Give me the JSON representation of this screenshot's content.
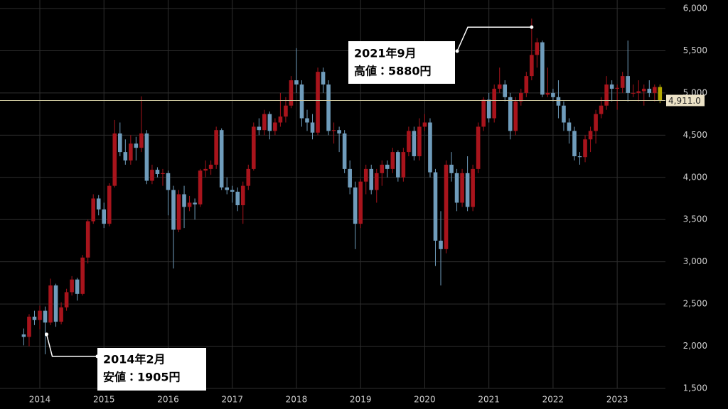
{
  "chart_data": {
    "type": "candlestick",
    "categories": [
      null,
      null,
      null,
      "2014",
      null,
      null,
      null,
      null,
      null,
      null,
      null,
      null,
      null,
      null,
      null,
      "2015",
      null,
      null,
      null,
      null,
      null,
      null,
      null,
      null,
      null,
      null,
      null,
      "2016",
      null,
      null,
      null,
      null,
      null,
      null,
      null,
      null,
      null,
      null,
      null,
      "2017",
      null,
      null,
      null,
      null,
      null,
      null,
      null,
      null,
      null,
      null,
      null,
      "2018",
      null,
      null,
      null,
      null,
      null,
      null,
      null,
      null,
      null,
      null,
      null,
      "2019",
      null,
      null,
      null,
      null,
      null,
      null,
      null,
      null,
      null,
      null,
      null,
      "2020",
      null,
      null,
      null,
      null,
      null,
      null,
      null,
      null,
      null,
      null,
      null,
      "2021",
      null,
      null,
      null,
      null,
      null,
      null,
      null,
      null,
      null,
      null,
      null,
      "2022",
      null,
      null,
      null,
      null,
      null,
      null,
      null,
      null,
      null,
      null,
      null,
      "2023",
      null,
      null,
      null,
      null,
      null,
      null,
      null,
      null
    ],
    "open": [
      2140,
      2110,
      2350,
      2310,
      2420,
      2280,
      2720,
      2290,
      2460,
      2640,
      2790,
      2620,
      3050,
      3480,
      3750,
      3620,
      3450,
      3900,
      4520,
      4300,
      4200,
      4400,
      4350,
      4520,
      3960,
      4090,
      4040,
      4050,
      3850,
      3380,
      3800,
      3650,
      3700,
      3680,
      4080,
      4100,
      4150,
      4560,
      3880,
      3850,
      3830,
      3670,
      3900,
      4100,
      4600,
      4560,
      4750,
      4550,
      4650,
      4720,
      4850,
      5150,
      5100,
      4700,
      4650,
      4530,
      5250,
      5100,
      4550,
      4560,
      4520,
      4100,
      3880,
      3450,
      3950,
      4100,
      3850,
      4050,
      4150,
      4100,
      4300,
      4000,
      4300,
      4550,
      4250,
      4600,
      4650,
      4060,
      3250,
      3150,
      4150,
      4050,
      3700,
      4050,
      3650,
      4100,
      4600,
      4920,
      4700,
      5050,
      5100,
      4950,
      4550,
      4900,
      5000,
      5200,
      5450,
      5600,
      4980,
      5000,
      4950,
      4850,
      4650,
      4550,
      4250,
      4240,
      4450,
      4550,
      4750,
      4850,
      5100,
      5050,
      5060,
      5200,
      5000,
      5000,
      5020,
      5050,
      5000,
      5070
    ],
    "high": [
      2210,
      2380,
      2420,
      2480,
      2470,
      2800,
      2740,
      2520,
      2680,
      2830,
      2810,
      3080,
      3500,
      3800,
      3790,
      3700,
      3930,
      4680,
      4650,
      4450,
      4500,
      4480,
      4960,
      4560,
      4150,
      4120,
      4100,
      4080,
      3900,
      3850,
      3900,
      3780,
      3750,
      4100,
      4200,
      4200,
      4600,
      4580,
      4000,
      3900,
      3880,
      3950,
      4150,
      4650,
      4700,
      4800,
      4780,
      4700,
      5000,
      4950,
      5200,
      5530,
      5150,
      4800,
      4750,
      5300,
      5300,
      5150,
      4650,
      4600,
      4560,
      4200,
      3950,
      3980,
      4150,
      4150,
      4100,
      4200,
      4200,
      4350,
      4320,
      4350,
      4600,
      4600,
      4700,
      4750,
      4700,
      4100,
      3600,
      4200,
      4300,
      4100,
      4100,
      4250,
      4150,
      4650,
      4950,
      5000,
      5100,
      5300,
      5150,
      5000,
      4950,
      5050,
      5250,
      5880,
      5650,
      5620,
      5300,
      5050,
      5150,
      4900,
      4700,
      4600,
      4300,
      4500,
      4600,
      4800,
      4950,
      5200,
      5150,
      5100,
      5250,
      5620,
      5100,
      5150,
      5100,
      5150,
      5100,
      5100
    ],
    "low": [
      2010,
      2000,
      2250,
      2200,
      1905,
      2250,
      2230,
      2260,
      2420,
      2600,
      2540,
      2600,
      2980,
      3450,
      3550,
      3400,
      3420,
      3880,
      4250,
      4150,
      4150,
      4200,
      4300,
      3920,
      3920,
      4000,
      3900,
      3550,
      2920,
      3350,
      3400,
      3600,
      3500,
      3650,
      4000,
      4030,
      4100,
      3850,
      3800,
      3700,
      3600,
      3450,
      3850,
      4080,
      4500,
      4500,
      4450,
      4500,
      4600,
      4650,
      4820,
      5000,
      4600,
      4550,
      4450,
      4500,
      5000,
      4500,
      4400,
      4300,
      4050,
      3800,
      3150,
      3400,
      3800,
      3800,
      3700,
      3900,
      4000,
      4050,
      3950,
      3950,
      4250,
      4200,
      4200,
      4550,
      4000,
      2950,
      2720,
      3100,
      3950,
      3600,
      3650,
      3600,
      3600,
      4050,
      4550,
      4650,
      4650,
      5000,
      4900,
      4450,
      4500,
      4850,
      4950,
      5150,
      5300,
      4950,
      4950,
      4900,
      4700,
      4550,
      4400,
      4200,
      4150,
      4180,
      4300,
      4400,
      4700,
      4800,
      4900,
      4800,
      5000,
      4900,
      4950,
      4900,
      4850,
      4950,
      4900,
      4880
    ],
    "close": [
      2110,
      2350,
      2310,
      2420,
      2280,
      2720,
      2290,
      2460,
      2640,
      2790,
      2620,
      3050,
      3480,
      3750,
      3620,
      3450,
      3900,
      4520,
      4300,
      4200,
      4400,
      4350,
      4520,
      3960,
      4090,
      4040,
      4050,
      3850,
      3380,
      3800,
      3650,
      3700,
      3680,
      4080,
      4100,
      4150,
      4560,
      3880,
      3850,
      3830,
      3670,
      3900,
      4100,
      4600,
      4560,
      4750,
      4550,
      4650,
      4720,
      4850,
      5150,
      5100,
      4700,
      4650,
      4530,
      5250,
      5100,
      4550,
      4560,
      4520,
      4100,
      3880,
      3450,
      3950,
      4100,
      3850,
      4050,
      4150,
      4100,
      4300,
      4000,
      4300,
      4550,
      4250,
      4600,
      4650,
      4060,
      3250,
      3150,
      4150,
      4050,
      3700,
      4050,
      3650,
      4100,
      4600,
      4920,
      4700,
      5050,
      5100,
      4950,
      4550,
      4900,
      5000,
      5200,
      5450,
      5600,
      4980,
      5000,
      4950,
      4850,
      4650,
      4550,
      4250,
      4240,
      4450,
      4550,
      4750,
      4850,
      5100,
      5050,
      5060,
      5200,
      5000,
      5000,
      5020,
      5050,
      5000,
      5070,
      4911
    ],
    "up_color": "#a8141c",
    "down_color": "#6f9cbb",
    "current_color": "#b3a800",
    "current_price": {
      "value": 4911,
      "label": "4,911.0"
    },
    "ylim": [
      1500,
      6000
    ],
    "yticks": [
      {
        "value": 1500,
        "label": "1,500"
      },
      {
        "value": 2000,
        "label": "2,000"
      },
      {
        "value": 2500,
        "label": "2,500"
      },
      {
        "value": 3000,
        "label": "3,000"
      },
      {
        "value": 3500,
        "label": "3,500"
      },
      {
        "value": 4000,
        "label": "4,000"
      },
      {
        "value": 4500,
        "label": "4,500"
      },
      {
        "value": 5000,
        "label": "5,000"
      },
      {
        "value": 5500,
        "label": "5,500"
      },
      {
        "value": 6000,
        "label": "6,000"
      }
    ],
    "grid": true,
    "annotations": [
      {
        "lines": [
          "2021年9月",
          "高値：5880円"
        ]
      },
      {
        "lines": [
          "2014年2月",
          "安値：1905円"
        ]
      }
    ]
  }
}
